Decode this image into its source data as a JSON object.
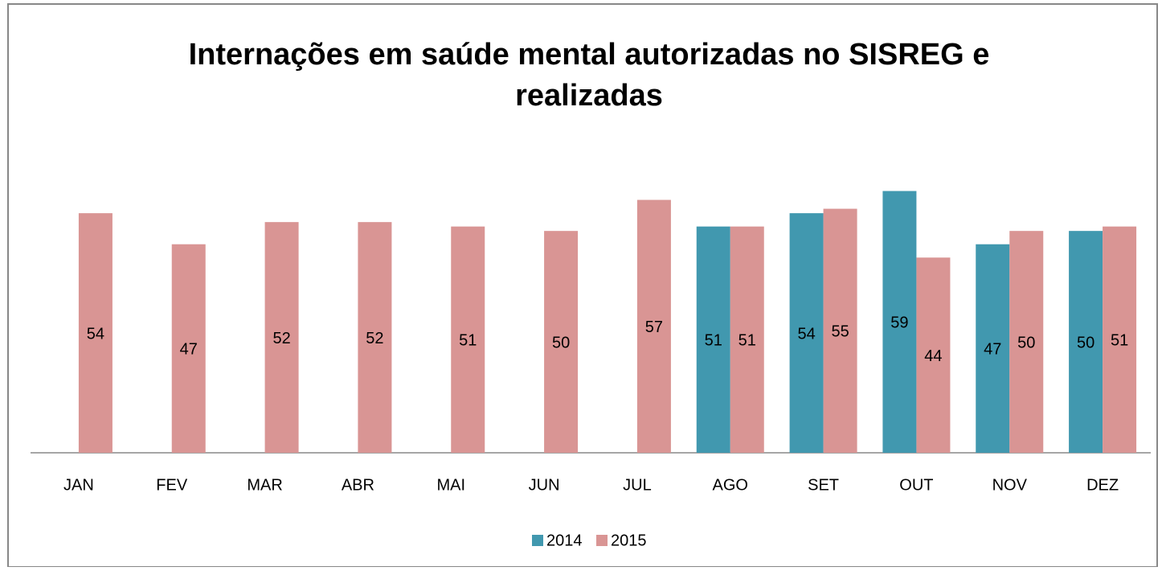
{
  "chart_data": {
    "type": "bar",
    "title": [
      "Internações em saúde mental autorizadas no SISREG e",
      "realizadas"
    ],
    "categories": [
      "JAN",
      "FEV",
      "MAR",
      "ABR",
      "MAI",
      "JUN",
      "JUL",
      "AGO",
      "SET",
      "OUT",
      "NOV",
      "DEZ"
    ],
    "series": [
      {
        "name": "2014",
        "color": "#4198af",
        "values": [
          null,
          null,
          null,
          null,
          null,
          null,
          null,
          51,
          54,
          59,
          47,
          50
        ]
      },
      {
        "name": "2015",
        "color": "#d99594",
        "values": [
          54,
          47,
          52,
          52,
          51,
          50,
          57,
          51,
          55,
          44,
          50,
          51
        ]
      }
    ],
    "ylim": [
      0,
      60
    ],
    "legend": "bottom"
  }
}
